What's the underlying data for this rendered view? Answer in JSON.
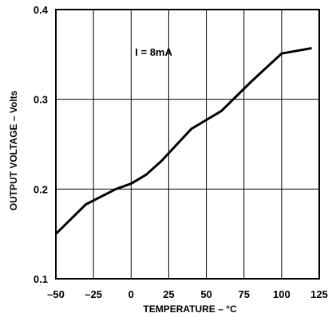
{
  "chart_data": {
    "type": "line",
    "title": "",
    "xlabel": "TEMPERATURE – °C",
    "ylabel": "OUTPUT VOLTAGE – Volts",
    "xlim": [
      -50,
      125
    ],
    "ylim": [
      0.1,
      0.4
    ],
    "x_ticks": [
      -50,
      -25,
      0,
      25,
      50,
      75,
      100,
      125
    ],
    "y_ticks": [
      0.1,
      0.2,
      0.3,
      0.4
    ],
    "x_tick_labels": [
      "–50",
      "–25",
      "0",
      "25",
      "50",
      "75",
      "100",
      "125"
    ],
    "y_tick_labels": [
      "0.1",
      "0.2",
      "0.3",
      "0.4"
    ],
    "grid": true,
    "annotation": "I = 8mA",
    "series": [
      {
        "x": [
          -50,
          -30,
          -10,
          0,
          10,
          20,
          40,
          60,
          80,
          100,
          120
        ],
        "y": [
          0.15,
          0.183,
          0.2,
          0.206,
          0.216,
          0.231,
          0.267,
          0.287,
          0.32,
          0.351,
          0.357
        ]
      }
    ],
    "colors": {
      "line": "#000000",
      "grid": "#000000",
      "background": "#ffffff"
    }
  }
}
